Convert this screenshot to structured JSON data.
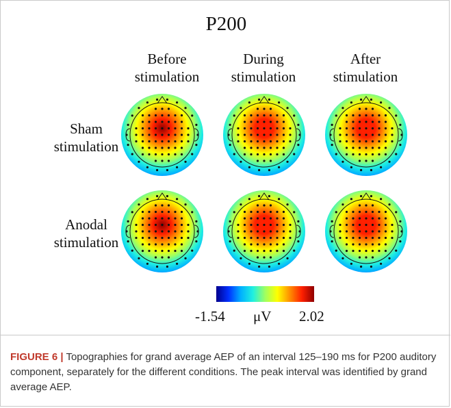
{
  "figure": {
    "title": "P200",
    "columns": [
      {
        "line1": "Before",
        "line2": "stimulation"
      },
      {
        "line1": "During",
        "line2": "stimulation"
      },
      {
        "line1": "After",
        "line2": "stimulation"
      }
    ],
    "rows": [
      {
        "line1": "Sham",
        "line2": "stimulation"
      },
      {
        "line1": "Anodal",
        "line2": "stimulation"
      }
    ],
    "colorbar": {
      "min_label": "-1.54",
      "unit": "μV",
      "max_label": "2.02",
      "colors": [
        "#00008f",
        "#0030ff",
        "#00b0ff",
        "#20f0e0",
        "#a0ff60",
        "#ffff00",
        "#ff9000",
        "#ff2000",
        "#8f0000"
      ]
    },
    "maps": [
      {
        "row": "Sham",
        "column": "Before",
        "peak_level": 1.0
      },
      {
        "row": "Sham",
        "column": "During",
        "peak_level": 0.95
      },
      {
        "row": "Sham",
        "column": "After",
        "peak_level": 0.95
      },
      {
        "row": "Anodal",
        "column": "Before",
        "peak_level": 1.0
      },
      {
        "row": "Anodal",
        "column": "During",
        "peak_level": 0.9
      },
      {
        "row": "Anodal",
        "column": "After",
        "peak_level": 0.95
      }
    ]
  },
  "caption": {
    "label": "FIGURE 6 |",
    "text": " Topographies for grand average AEP of an interval 125–190 ms for P200 auditory component, separately for the different conditions. The peak interval was identified by grand average AEP."
  }
}
